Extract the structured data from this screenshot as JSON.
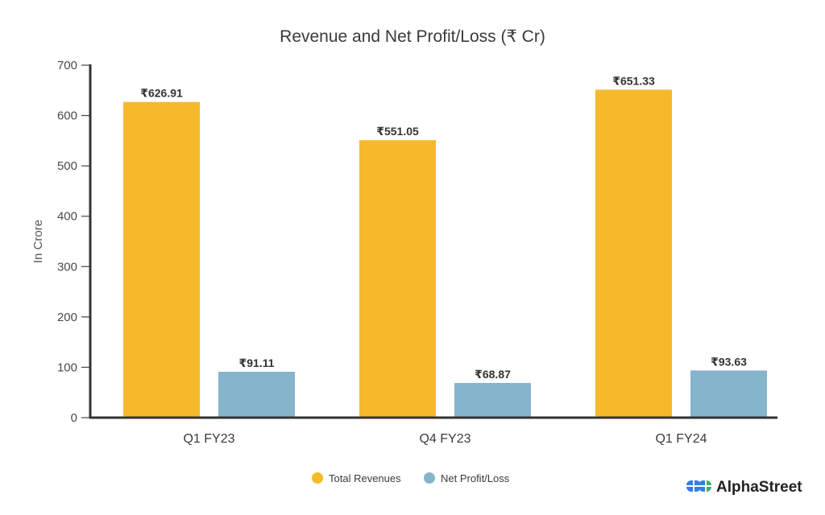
{
  "chart_data": {
    "type": "bar",
    "title": "Revenue and Net Profit/Loss (₹ Cr)",
    "xlabel": "",
    "ylabel": "In Crore",
    "ylim": [
      0,
      700
    ],
    "yticks": [
      0,
      100,
      200,
      300,
      400,
      500,
      600,
      700
    ],
    "categories": [
      "Q1 FY23",
      "Q4 FY23",
      "Q1 FY24"
    ],
    "series": [
      {
        "name": "Total Revenues",
        "color": "#F6B92B",
        "values": [
          626.91,
          551.05,
          651.33
        ],
        "labels": [
          "₹626.91",
          "₹551.05",
          "₹651.33"
        ]
      },
      {
        "name": "Net Profit/Loss",
        "color": "#85B4CB",
        "values": [
          91.11,
          68.87,
          93.63
        ],
        "labels": [
          "₹91.11",
          "₹68.87",
          "₹93.63"
        ]
      }
    ],
    "legend": "bottom-center",
    "grid": false
  },
  "branding": {
    "logo_text": "AlphaStreet",
    "logo_icon": "alphastreet-logo-icon",
    "logo_colors": [
      "#2F80ED",
      "#3FAF6B"
    ]
  }
}
